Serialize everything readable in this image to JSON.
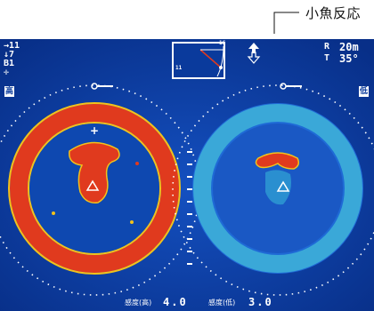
{
  "callout": {
    "label": "小魚反応"
  },
  "status_left": {
    "line1": "→11",
    "line2": "↓7",
    "line3": "B1",
    "line4": "✛"
  },
  "compass": {
    "top_value": "16",
    "left_value": "11"
  },
  "range": {
    "r_label": "R",
    "r_value": "20m",
    "t_label": "T",
    "t_value": "35°"
  },
  "left_view": {
    "mode_badge": "高"
  },
  "right_view": {
    "mode_badge": "低"
  },
  "bottom": {
    "high_label": "感度(高)",
    "high_value": "4.0",
    "low_label": "感度(低)",
    "low_value": "3.0"
  },
  "colors": {
    "screen_bg": "#0a3a9c",
    "echo_red": "#e03a1e",
    "echo_cyan": "#3aa8d8"
  }
}
